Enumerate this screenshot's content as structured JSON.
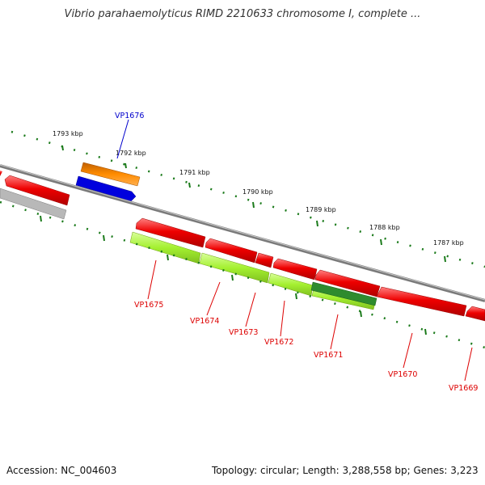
{
  "title": "Vibrio parahaemolyticus RIMD 2210633 chromosome I, complete ...",
  "accession": "Accession: NC_004603",
  "topology": "Topology: circular; Length: 3,288,558 bp; Genes: 3,223",
  "kbp_labels": [
    "1793 kbp",
    "1792 kbp",
    "1791 kbp",
    "1790 kbp",
    "1789 kbp",
    "1788 kbp",
    "1787 kbp"
  ],
  "gene_labels": {
    "vp1676": "VP1676",
    "vp1675": "VP1675",
    "vp1674": "VP1674",
    "vp1673": "VP1673",
    "vp1672": "VP1672",
    "vp1671": "VP1671",
    "vp1670": "VP1670",
    "vp1669": "VP1669"
  },
  "colors": {
    "backbone": "#808080",
    "gene_red": "#ee0000",
    "gene_blue": "#0000dd",
    "gene_orange": "#ff8c00",
    "gene_gray": "#b0b0b0",
    "gene_lightgreen": "#a4f030",
    "gene_darkgreen": "#2e8b2e",
    "tick_green": "#1a7a1a",
    "label_red": "#dd0000",
    "label_blue": "#0000cc"
  }
}
